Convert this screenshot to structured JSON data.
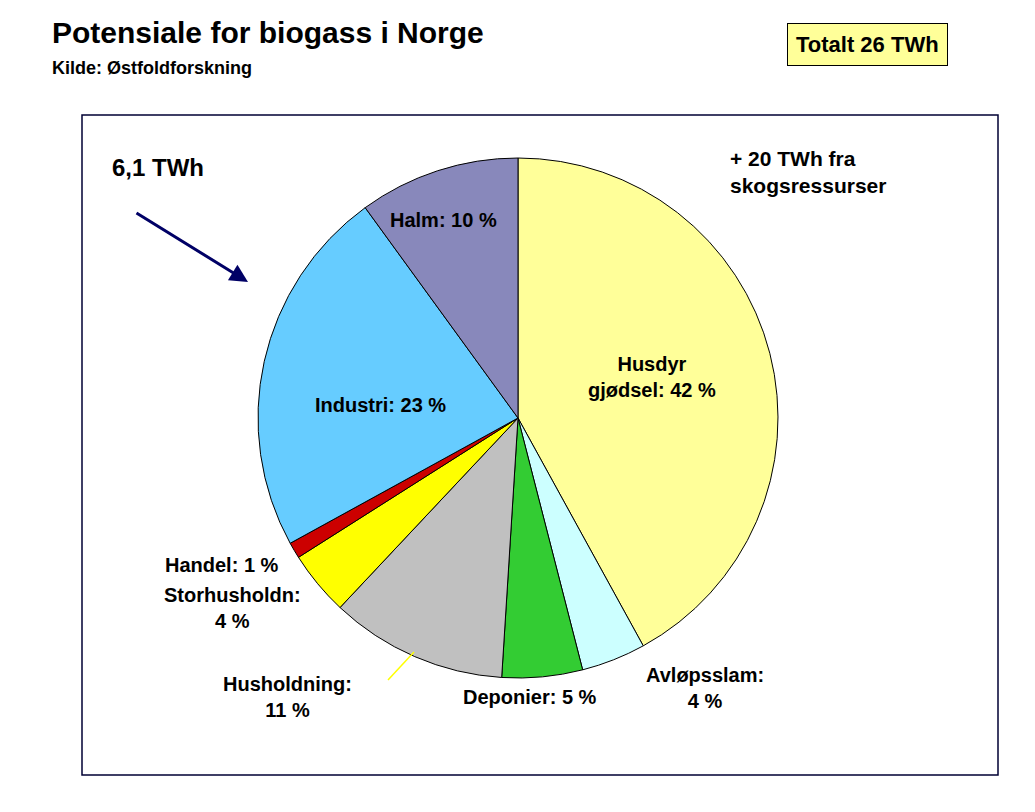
{
  "chart_data": {
    "type": "pie",
    "title": "Potensiale for biogass i Norge",
    "subtitle": "Kilde: Østfoldforskning",
    "annotations": [
      "Totalt 26 TWh",
      "6,1 TWh",
      "+ 20 TWh fra\nskogsressurser"
    ],
    "categories": [
      "Husdyr gjødsel",
      "Avløpsslam",
      "Deponier",
      "Husholdning",
      "Storhusholdn",
      "Handel",
      "Industri",
      "Halm"
    ],
    "values": [
      42,
      4,
      5,
      11,
      4,
      1,
      23,
      10
    ],
    "value_labels": [
      "Husdyr\ngjødsel: 42 %",
      "Avløpsslam:\n4 %",
      "Deponier: 5 %",
      "Husholdning:\n11 %",
      "Storhusholdn:\n4 %",
      "Handel: 1 %",
      "Industri: 23 %",
      "Halm: 10 %"
    ],
    "colors": [
      "#FFFF99",
      "#CCFFFF",
      "#33CC33",
      "#C0C0C0",
      "#FFFF00",
      "#CC0000",
      "#66CCFF",
      "#8888BB"
    ],
    "data_labels": true
  }
}
